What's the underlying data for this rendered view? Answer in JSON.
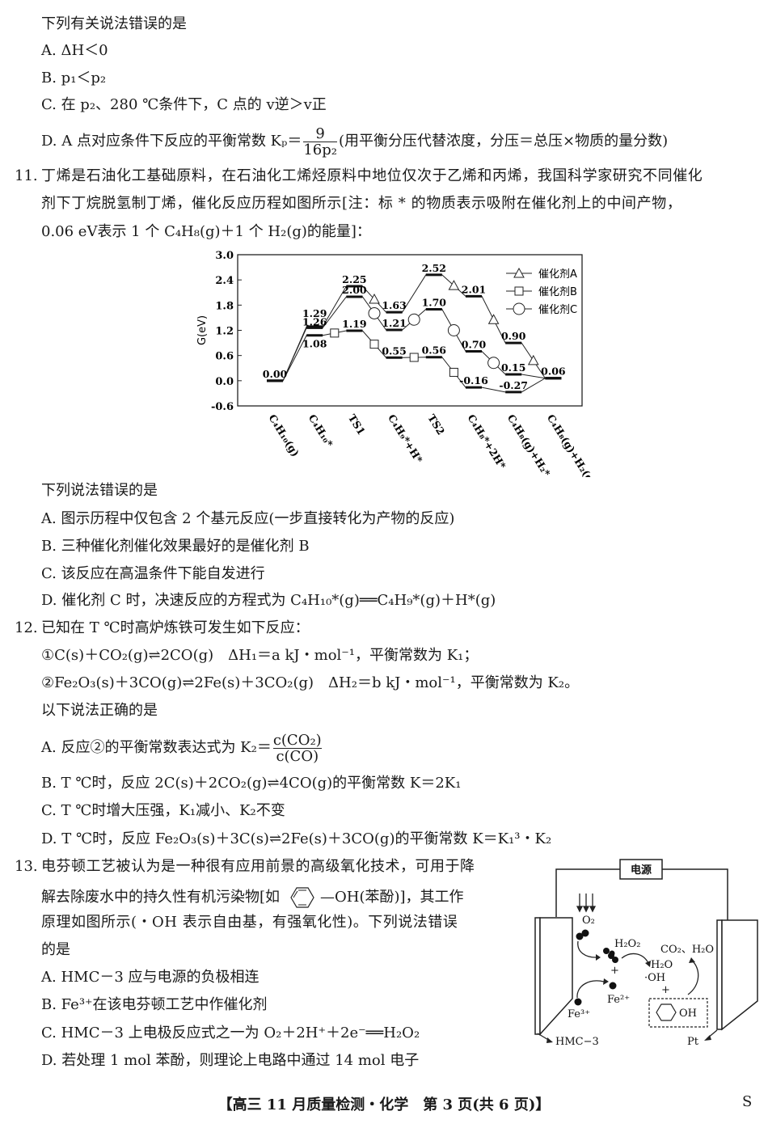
{
  "q10": {
    "stem": "下列有关说法错误的是",
    "options": [
      "A. ΔH＜0",
      "B. p₁＜p₂",
      "C. 在 p₂、280 ℃条件下，C 点的 v逆＞v正",
      "D. A 点对应条件下反应的平衡常数 Kₚ＝"
    ],
    "d_frac_num": "9",
    "d_frac_den": "16p₂",
    "d_tail": "(用平衡分压代替浓度，分压＝总压×物质的量分数)"
  },
  "q11": {
    "number": "11.",
    "stem_lines": [
      "丁烯是石油化工基础原料，在石油化工烯烃原料中地位仅次于乙烯和丙烯，我国科学家研究不同催化",
      "剂下丁烷脱氢制丁烯，催化反应历程如图所示[注：标 * 的物质表示吸附在催化剂上的中间产物，",
      "0.06 eV表示 1 个 C₄H₈(g)＋1 个 H₂(g)的能量]："
    ],
    "question": "下列说法错误的是",
    "options": [
      "A. 图示历程中仅包含 2 个基元反应(一步直接转化为产物的反应)",
      "B. 三种催化剂催化效果最好的是催化剂 B",
      "C. 该反应在高温条件下能自发进行",
      "D. 催化剂 C 时，决速反应的方程式为 C₄H₁₀*(g)══C₄H₉*(g)＋H*(g)"
    ]
  },
  "chart_data": {
    "type": "line",
    "ylabel": "G(eV)",
    "ylim": [
      -0.6,
      3.0
    ],
    "yticks": [
      "3.0",
      "2.4",
      "1.8",
      "1.2",
      "0.6",
      "0.0",
      "-0.6"
    ],
    "categories": [
      "C₄H₁₀(g)",
      "C₄H₁₀*",
      "TS1",
      "C₄H₉*+H*",
      "TS2",
      "C₄H₈*+2H*",
      "C₄H₈(g)+H₂*",
      "C₄H₈(g)+H₂(g)"
    ],
    "legend_position": "top-right",
    "series": [
      {
        "name": "催化剂A",
        "marker": "triangle",
        "values": [
          0.0,
          1.29,
          2.25,
          1.63,
          2.52,
          2.01,
          0.9,
          0.06
        ]
      },
      {
        "name": "催化剂B",
        "marker": "square",
        "values": [
          0.0,
          1.08,
          1.19,
          0.55,
          0.56,
          -0.16,
          -0.27,
          0.06
        ]
      },
      {
        "name": "催化剂C",
        "marker": "circle",
        "values": [
          0.0,
          1.26,
          2.0,
          1.21,
          1.7,
          0.7,
          0.15,
          0.06
        ]
      }
    ],
    "value_labels": [
      "0.00",
      "1.29",
      "1.26",
      "1.08",
      "2.25",
      "2.00",
      "1.19",
      "1.63",
      "1.21",
      "0.55",
      "2.52",
      "1.70",
      "0.56",
      "2.01",
      "0.70",
      "-0.16",
      "0.90",
      "0.15",
      "-0.27",
      "0.06"
    ]
  },
  "q12": {
    "number": "12.",
    "stem": "已知在 T ℃时高炉炼铁可发生如下反应：",
    "reactions": [
      "①C(s)＋CO₂(g)⇌2CO(g)　ΔH₁＝a kJ・mol⁻¹，平衡常数为 K₁；",
      "②Fe₂O₃(s)＋3CO(g)⇌2Fe(s)＋3CO₂(g)　ΔH₂＝b kJ・mol⁻¹，平衡常数为 K₂。"
    ],
    "question": "以下说法正确的是",
    "a_prefix": "A. 反应②的平衡常数表达式为 K₂＝",
    "a_num": "c(CO₂)",
    "a_den": "c(CO)",
    "options": [
      "B. T ℃时，反应 2C(s)＋2CO₂(g)⇌4CO(g)的平衡常数 K＝2K₁",
      "C. T ℃时增大压强，K₁减小、K₂不变",
      "D. T ℃时，反应 Fe₂O₃(s)＋3C(s)⇌2Fe(s)＋3CO(g)的平衡常数 K＝K₁³・K₂"
    ]
  },
  "q13": {
    "number": "13.",
    "line1": "电芬顿工艺被认为是一种很有应用前景的高级氧化技术，可用于降",
    "line2a": "解去除废水中的持久性有机污染物[如",
    "line2b": "—OH(苯酚)]，其工作",
    "line3": "原理如图所示(・OH 表示自由基，有强氧化性)。下列说法错误",
    "line4": "的是",
    "options": [
      "A. HMC－3 应与电源的负极相连",
      "B. Fe³⁺在该电芬顿工艺中作催化剂",
      "C. HMC－3 上电极反应式之一为 O₂＋2H⁺＋2e⁻══H₂O₂",
      "D. 若处理 1 mol 苯酚，则理论上电路中通过 14 mol 电子"
    ],
    "diagram": {
      "power": "电源",
      "o2": "O₂",
      "h2o2": "H₂O₂",
      "products": "CO₂、H₂O",
      "h2o": "H₂O",
      "oh": "·OH",
      "plus": "+",
      "fe2": "Fe²⁺",
      "fe3": "Fe³⁺",
      "phenol_oh": "OH",
      "left_electrode": "HMC−3",
      "right_electrode": "Pt"
    }
  },
  "footer": {
    "text": "【高三 11 月质量检测・化学　第 3 页(共 6 页)】",
    "mark": "S"
  }
}
